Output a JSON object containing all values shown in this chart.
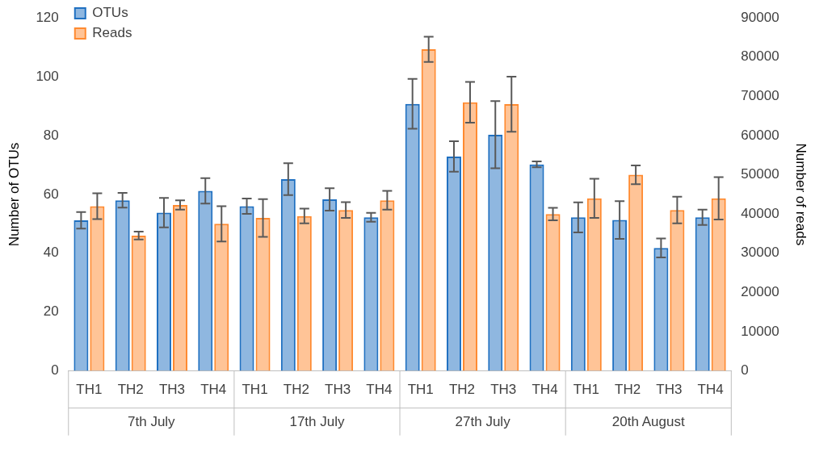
{
  "chart_data": {
    "type": "bar",
    "categories": [
      "TH1",
      "TH2",
      "TH3",
      "TH4",
      "TH1",
      "TH2",
      "TH3",
      "TH4",
      "TH1",
      "TH2",
      "TH3",
      "TH4",
      "TH1",
      "TH2",
      "TH3",
      "TH4"
    ],
    "annotations": [
      "7th July",
      "17th July",
      "27th July",
      "20th August"
    ],
    "ylabel": "Number of OTUs",
    "y2label": "Number of reads",
    "ylim": [
      0,
      120
    ],
    "yticks": [
      0,
      20,
      40,
      60,
      80,
      100,
      120
    ],
    "y2lim": [
      0,
      90000
    ],
    "y2ticks": [
      0,
      10000,
      20000,
      30000,
      40000,
      50000,
      60000,
      70000,
      80000,
      90000
    ],
    "grid": false,
    "legend": "top left",
    "series": [
      {
        "name": "OTUs",
        "color": "#1f70c1",
        "values": [
          51.2,
          58,
          53.8,
          61.2,
          56,
          65.2,
          58.3,
          52.2,
          90.8,
          72.9,
          80.3,
          70.2,
          52.2,
          51.3,
          41.8,
          52.2
        ],
        "errors": [
          2.8,
          2.5,
          5,
          4.3,
          2.6,
          5.4,
          3.8,
          1.5,
          8.5,
          5.2,
          11.4,
          1,
          5.1,
          6.4,
          3.2,
          2.6
        ]
      },
      {
        "name": "Reads",
        "color": "#ff8a30",
        "axis": "y2",
        "values": [
          42000,
          34500,
          42300,
          37500,
          39000,
          39500,
          41000,
          43500,
          82000,
          68500,
          68000,
          40000,
          44000,
          50000,
          41000,
          44000
        ],
        "errors": [
          3300,
          1000,
          1200,
          4500,
          4800,
          1900,
          2000,
          2400,
          3200,
          5200,
          7000,
          1600,
          5000,
          2400,
          3400,
          5400
        ]
      }
    ]
  }
}
